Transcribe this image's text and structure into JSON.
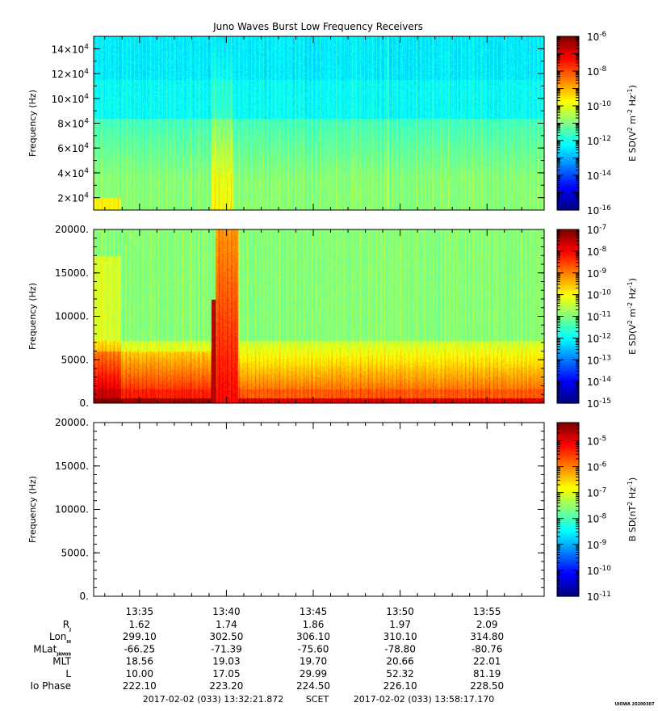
{
  "chart_data": {
    "title": "Juno Waves Burst Low Frequency Receivers",
    "type": "heatmap",
    "x": {
      "ticks": [
        "13:35",
        "13:40",
        "13:45",
        "13:50",
        "13:55"
      ],
      "tick_minutes": [
        2.64,
        7.64,
        12.64,
        17.64,
        22.64
      ],
      "start_minutes": 0,
      "end_minutes": 25.93
    },
    "panels": [
      {
        "ylabel": "Frequency (Hz)",
        "ylim": [
          10000,
          150000
        ],
        "yticks": [
          {
            "v": 20000,
            "mant": "2×10",
            "exp": "4"
          },
          {
            "v": 40000,
            "mant": "4×10",
            "exp": "4"
          },
          {
            "v": 60000,
            "mant": "6×10",
            "exp": "4"
          },
          {
            "v": 80000,
            "mant": "8×10",
            "exp": "4"
          },
          {
            "v": 100000,
            "mant": "10×10",
            "exp": "4"
          },
          {
            "v": 120000,
            "mant": "12×10",
            "exp": "4"
          },
          {
            "v": 140000,
            "mant": "14×10",
            "exp": "4"
          }
        ],
        "colorbar": {
          "label_base": "E SD(V",
          "label_tail": " m",
          "label_unit": " Hz",
          "label_pow1": "2",
          "label_pow2": "-2",
          "label_pow3": "-1",
          "range_log": [
            -16,
            -6
          ],
          "ticks": [
            {
              "mant": "10",
              "exp": "-6"
            },
            {
              "mant": "10",
              "exp": "-8"
            },
            {
              "mant": "10",
              "exp": "-10"
            },
            {
              "mant": "10",
              "exp": "-12"
            },
            {
              "mant": "10",
              "exp": "-14"
            },
            {
              "mant": "10",
              "exp": "-16"
            }
          ]
        },
        "has_data": true
      },
      {
        "ylabel": "Frequency (Hz)",
        "ylim": [
          0,
          20000
        ],
        "yticks": [
          {
            "v": 0,
            "label": "0."
          },
          {
            "v": 5000,
            "label": "5000."
          },
          {
            "v": 10000,
            "label": "10000."
          },
          {
            "v": 15000,
            "label": "15000."
          },
          {
            "v": 20000,
            "label": "20000."
          }
        ],
        "colorbar": {
          "label_base": "E SD(V",
          "label_tail": " m",
          "label_unit": " Hz",
          "label_pow1": "2",
          "label_pow2": "-2",
          "label_pow3": "-1",
          "range_log": [
            -15,
            -7
          ],
          "ticks": [
            {
              "mant": "10",
              "exp": "-7"
            },
            {
              "mant": "10",
              "exp": "-8"
            },
            {
              "mant": "10",
              "exp": "-9"
            },
            {
              "mant": "10",
              "exp": "-10"
            },
            {
              "mant": "10",
              "exp": "-11"
            },
            {
              "mant": "10",
              "exp": "-12"
            },
            {
              "mant": "10",
              "exp": "-13"
            },
            {
              "mant": "10",
              "exp": "-14"
            },
            {
              "mant": "10",
              "exp": "-15"
            }
          ]
        },
        "has_data": true
      },
      {
        "ylabel": "Frequency (Hz)",
        "ylim": [
          0,
          20000
        ],
        "yticks": [
          {
            "v": 0,
            "label": "0."
          },
          {
            "v": 5000,
            "label": "5000."
          },
          {
            "v": 10000,
            "label": "10000."
          },
          {
            "v": 15000,
            "label": "15000."
          },
          {
            "v": 20000,
            "label": "20000."
          }
        ],
        "colorbar": {
          "label_base": "B SD(nT",
          "label_tail": " Hz",
          "label_unit": "",
          "label_pow1": "2",
          "label_pow2": "-1",
          "label_pow3": "",
          "range_log": [
            -11,
            -4.3
          ],
          "ticks": [
            {
              "mant": "10",
              "exp": "-5"
            },
            {
              "mant": "10",
              "exp": "-6"
            },
            {
              "mant": "10",
              "exp": "-7"
            },
            {
              "mant": "10",
              "exp": "-8"
            },
            {
              "mant": "10",
              "exp": "-9"
            },
            {
              "mant": "10",
              "exp": "-10"
            },
            {
              "mant": "10",
              "exp": "-11"
            }
          ]
        },
        "has_data": false
      }
    ],
    "ephemeris": {
      "rows": [
        {
          "label": "R",
          "sub": "J",
          "values": [
            "1.62",
            "1.74",
            "1.86",
            "1.97",
            "2.09"
          ]
        },
        {
          "label": "Lon",
          "sub": "III",
          "values": [
            "299.10",
            "302.50",
            "306.10",
            "310.10",
            "314.80"
          ]
        },
        {
          "label": "MLat",
          "sub": "JRM09",
          "values": [
            "-66.25",
            "-71.39",
            "-75.60",
            "-78.80",
            "-80.76"
          ]
        },
        {
          "label": "MLT",
          "sub": "",
          "values": [
            "18.56",
            "19.03",
            "19.70",
            "20.66",
            "22.01"
          ]
        },
        {
          "label": "L",
          "sub": "",
          "values": [
            "10.00",
            "17.05",
            "29.99",
            "52.32",
            "81.19"
          ]
        },
        {
          "label": "Io Phase",
          "sub": "",
          "values": [
            "222.10",
            "223.20",
            "224.50",
            "226.10",
            "228.50"
          ]
        }
      ]
    },
    "footer": {
      "start": "2017-02-02 (033) 13:32:21.872",
      "label": "SCET",
      "end": "2017-02-02 (033) 13:58:17.170",
      "credit": "UIOWA 20200307"
    }
  }
}
